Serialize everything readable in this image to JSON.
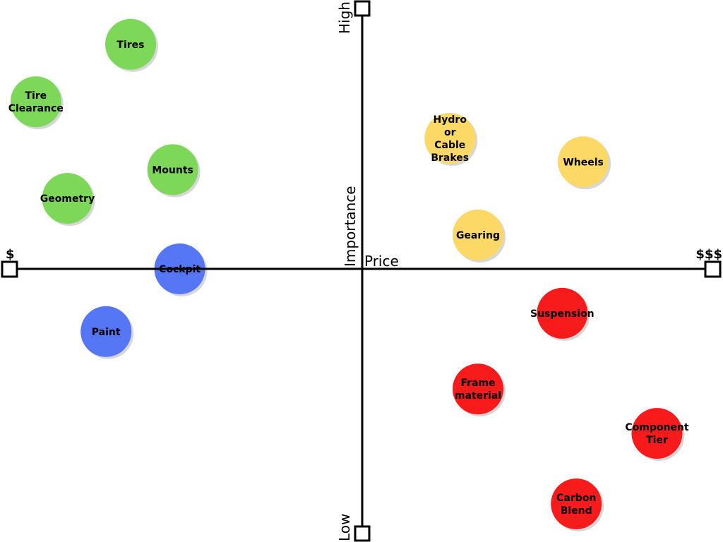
{
  "axes": {
    "x_title": "Price",
    "x_low": "$",
    "x_high": "$$$",
    "y_title": "Importance",
    "y_low": "Low",
    "y_high": "High"
  },
  "colors": {
    "green": "#7dd85a",
    "yellow": "#fcd966",
    "blue": "#5577f5",
    "red": "#f71b1b"
  },
  "bubbles": [
    {
      "label": [
        "Tires"
      ],
      "color": "green",
      "price": -0.66,
      "importance": 0.86
    },
    {
      "label": [
        "Tire",
        "Clearance"
      ],
      "color": "green",
      "price": -0.93,
      "importance": 0.64
    },
    {
      "label": [
        "Mounts"
      ],
      "color": "green",
      "price": -0.54,
      "importance": 0.38
    },
    {
      "label": [
        "Geometry"
      ],
      "color": "green",
      "price": -0.84,
      "importance": 0.27
    },
    {
      "label": [
        "Cockpit"
      ],
      "color": "blue",
      "price": -0.52,
      "importance": 0.0
    },
    {
      "label": [
        "Paint"
      ],
      "color": "blue",
      "price": -0.73,
      "importance": -0.24
    },
    {
      "label": [
        "Hydro",
        "or",
        "Cable",
        "Brakes"
      ],
      "color": "yellow",
      "price": 0.25,
      "importance": 0.5
    },
    {
      "label": [
        "Wheels"
      ],
      "color": "yellow",
      "price": 0.63,
      "importance": 0.41
    },
    {
      "label": [
        "Gearing"
      ],
      "color": "yellow",
      "price": 0.33,
      "importance": 0.13
    },
    {
      "label": [
        "Suspension"
      ],
      "color": "red",
      "price": 0.57,
      "importance": -0.17
    },
    {
      "label": [
        "Frame",
        "material"
      ],
      "color": "red",
      "price": 0.33,
      "importance": -0.46
    },
    {
      "label": [
        "Component",
        "Tier"
      ],
      "color": "red",
      "price": 0.84,
      "importance": -0.63
    },
    {
      "label": [
        "Carbon",
        "Blend"
      ],
      "color": "red",
      "price": 0.61,
      "importance": -0.9
    }
  ]
}
